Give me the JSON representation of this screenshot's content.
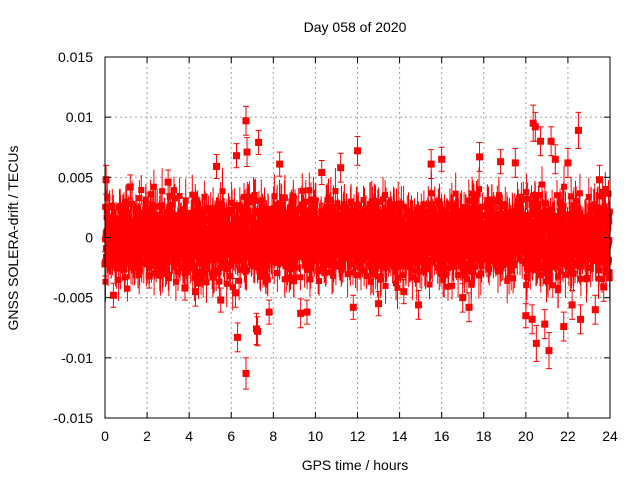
{
  "chart_data": {
    "type": "scatter",
    "title": "Day 058 of 2020",
    "xlabel": "GPS time / hours",
    "ylabel": "GNSS SOLERA-drift / TECUs",
    "xlim": [
      0,
      24
    ],
    "ylim": [
      -0.015,
      0.015
    ],
    "xticks": [
      "0",
      "2",
      "4",
      "6",
      "8",
      "10",
      "12",
      "14",
      "16",
      "18",
      "20",
      "22",
      "24"
    ],
    "yticks": [
      "-0.015",
      "-0.01",
      "-0.005",
      "0",
      "0.005",
      "0.01",
      "0.015"
    ],
    "grid": true,
    "colors": {
      "series": "#ff0000",
      "grid": "#a0a0a0",
      "axis": "#000000"
    },
    "series": [
      {
        "marker": "square",
        "error_bars": true,
        "dense_band": {
          "sample_interval_hours": 0.0083,
          "typical_y_range": [
            -0.004,
            0.004
          ],
          "typical_error": 0.0015
        },
        "points": [
          {
            "x": 0.05,
            "y": 0.0048,
            "err": 0.0012
          },
          {
            "x": 0.0,
            "y": -0.0022,
            "err": 0.001
          },
          {
            "x": 0.4,
            "y": -0.0048,
            "err": 0.001
          },
          {
            "x": 1.2,
            "y": 0.0042,
            "err": 0.001
          },
          {
            "x": 2.1,
            "y": -0.0032,
            "err": 0.001
          },
          {
            "x": 3.0,
            "y": 0.0046,
            "err": 0.001
          },
          {
            "x": 3.8,
            "y": -0.0042,
            "err": 0.001
          },
          {
            "x": 4.3,
            "y": -0.0045,
            "err": 0.0012
          },
          {
            "x": 5.3,
            "y": 0.0059,
            "err": 0.001
          },
          {
            "x": 5.5,
            "y": -0.0052,
            "err": 0.001
          },
          {
            "x": 6.2,
            "y": -0.0046,
            "err": 0.0012
          },
          {
            "x": 6.25,
            "y": 0.0068,
            "err": 0.001
          },
          {
            "x": 6.3,
            "y": -0.0083,
            "err": 0.0012
          },
          {
            "x": 6.7,
            "y": 0.0097,
            "err": 0.0012
          },
          {
            "x": 6.75,
            "y": 0.0071,
            "err": 0.0012
          },
          {
            "x": 6.7,
            "y": -0.0113,
            "err": 0.0013
          },
          {
            "x": 7.3,
            "y": 0.0079,
            "err": 0.001
          },
          {
            "x": 7.2,
            "y": -0.0076,
            "err": 0.0013
          },
          {
            "x": 7.25,
            "y": -0.0078,
            "err": 0.0012
          },
          {
            "x": 7.8,
            "y": -0.0062,
            "err": 0.001
          },
          {
            "x": 8.3,
            "y": 0.0061,
            "err": 0.001
          },
          {
            "x": 9.3,
            "y": -0.0063,
            "err": 0.0012
          },
          {
            "x": 9.6,
            "y": -0.0062,
            "err": 0.001
          },
          {
            "x": 10.3,
            "y": 0.0054,
            "err": 0.001
          },
          {
            "x": 11.2,
            "y": 0.0058,
            "err": 0.0012
          },
          {
            "x": 12.0,
            "y": 0.0072,
            "err": 0.0012
          },
          {
            "x": 11.8,
            "y": -0.0058,
            "err": 0.001
          },
          {
            "x": 13.0,
            "y": -0.0055,
            "err": 0.001
          },
          {
            "x": 14.2,
            "y": -0.0045,
            "err": 0.001
          },
          {
            "x": 14.9,
            "y": -0.0056,
            "err": 0.0012
          },
          {
            "x": 15.5,
            "y": 0.0061,
            "err": 0.0012
          },
          {
            "x": 16.0,
            "y": 0.0065,
            "err": 0.001
          },
          {
            "x": 17.0,
            "y": -0.005,
            "err": 0.0012
          },
          {
            "x": 17.3,
            "y": -0.0058,
            "err": 0.0012
          },
          {
            "x": 17.8,
            "y": 0.0067,
            "err": 0.0012
          },
          {
            "x": 18.8,
            "y": 0.0063,
            "err": 0.001
          },
          {
            "x": 19.5,
            "y": 0.0062,
            "err": 0.0012
          },
          {
            "x": 20.0,
            "y": -0.0065,
            "err": 0.001
          },
          {
            "x": 20.3,
            "y": -0.0068,
            "err": 0.0012
          },
          {
            "x": 20.35,
            "y": 0.0095,
            "err": 0.0015
          },
          {
            "x": 20.45,
            "y": 0.0092,
            "err": 0.0012
          },
          {
            "x": 20.5,
            "y": -0.0088,
            "err": 0.0015
          },
          {
            "x": 20.7,
            "y": 0.008,
            "err": 0.0012
          },
          {
            "x": 20.9,
            "y": -0.0072,
            "err": 0.0012
          },
          {
            "x": 21.1,
            "y": -0.0094,
            "err": 0.0015
          },
          {
            "x": 21.2,
            "y": 0.008,
            "err": 0.0012
          },
          {
            "x": 21.4,
            "y": 0.0065,
            "err": 0.0012
          },
          {
            "x": 21.8,
            "y": -0.0074,
            "err": 0.0012
          },
          {
            "x": 22.0,
            "y": 0.0062,
            "err": 0.0012
          },
          {
            "x": 22.2,
            "y": -0.0056,
            "err": 0.0012
          },
          {
            "x": 22.5,
            "y": 0.0089,
            "err": 0.0015
          },
          {
            "x": 22.6,
            "y": -0.0068,
            "err": 0.0012
          },
          {
            "x": 23.3,
            "y": -0.006,
            "err": 0.0012
          },
          {
            "x": 23.5,
            "y": 0.0048,
            "err": 0.0012
          },
          {
            "x": 23.7,
            "y": -0.0041,
            "err": 0.0012
          },
          {
            "x": 23.9,
            "y": -0.002,
            "err": 0.0012
          }
        ]
      }
    ]
  }
}
